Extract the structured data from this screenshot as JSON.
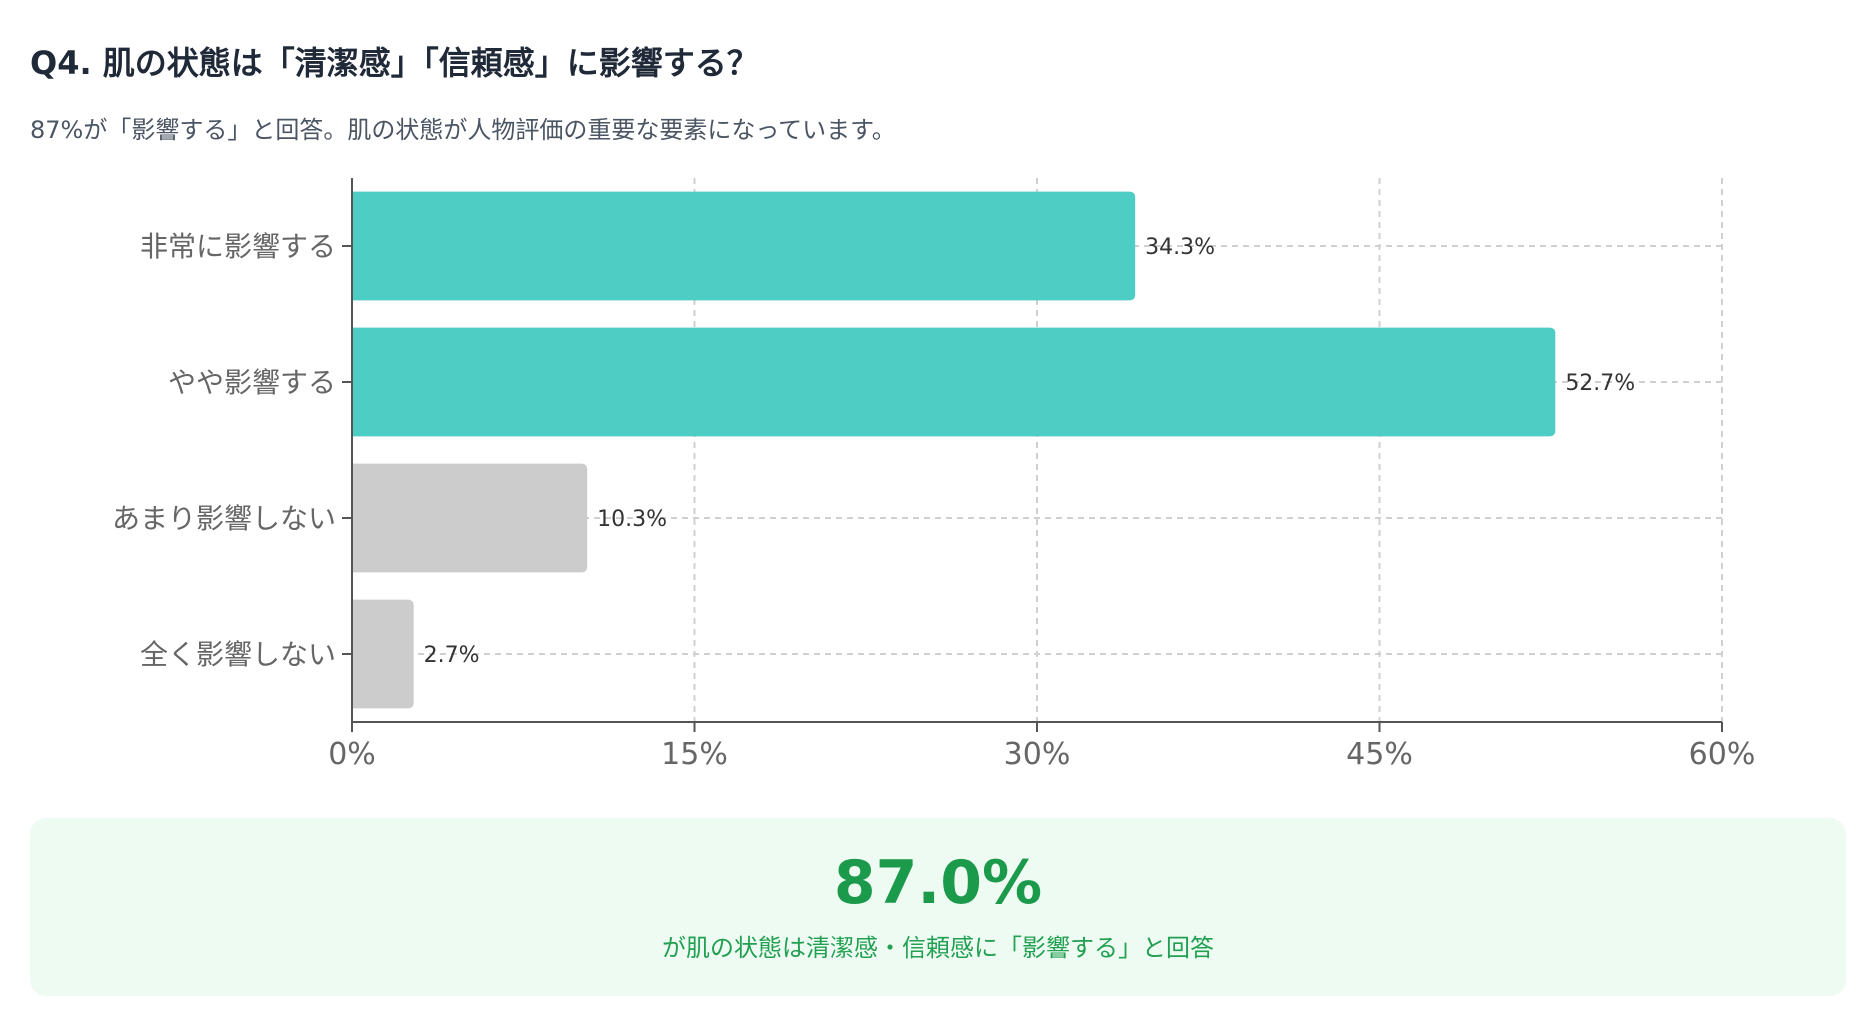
{
  "header": {
    "title": "Q4. 肌の状態は「清潔感」「信頼感」に影響する？",
    "subtitle": "87%が「影響する」と回答。肌の状態が人物評価の重要な要素になっています。"
  },
  "colors": {
    "positive": "#4ecdc4",
    "negative": "#cccccc",
    "summary_bg": "#eefbf2",
    "summary_accent": "#1a9a4a"
  },
  "chart_data": {
    "type": "bar",
    "orientation": "horizontal",
    "categories": [
      "非常に影響する",
      "やや影響する",
      "あまり影響しない",
      "全く影響しない"
    ],
    "values": [
      34.3,
      52.7,
      10.3,
      2.7
    ],
    "value_labels": [
      "34.3%",
      "52.7%",
      "10.3%",
      "2.7%"
    ],
    "bar_colors": [
      "#4ecdc4",
      "#4ecdc4",
      "#cccccc",
      "#cccccc"
    ],
    "xlim": [
      0,
      60
    ],
    "xticks": [
      0,
      15,
      30,
      45,
      60
    ],
    "xtick_labels": [
      "0%",
      "15%",
      "30%",
      "45%",
      "60%"
    ],
    "grid": true
  },
  "summary": {
    "value": "87.0%",
    "text": "が肌の状態は清潔感・信頼感に「影響する」と回答"
  }
}
